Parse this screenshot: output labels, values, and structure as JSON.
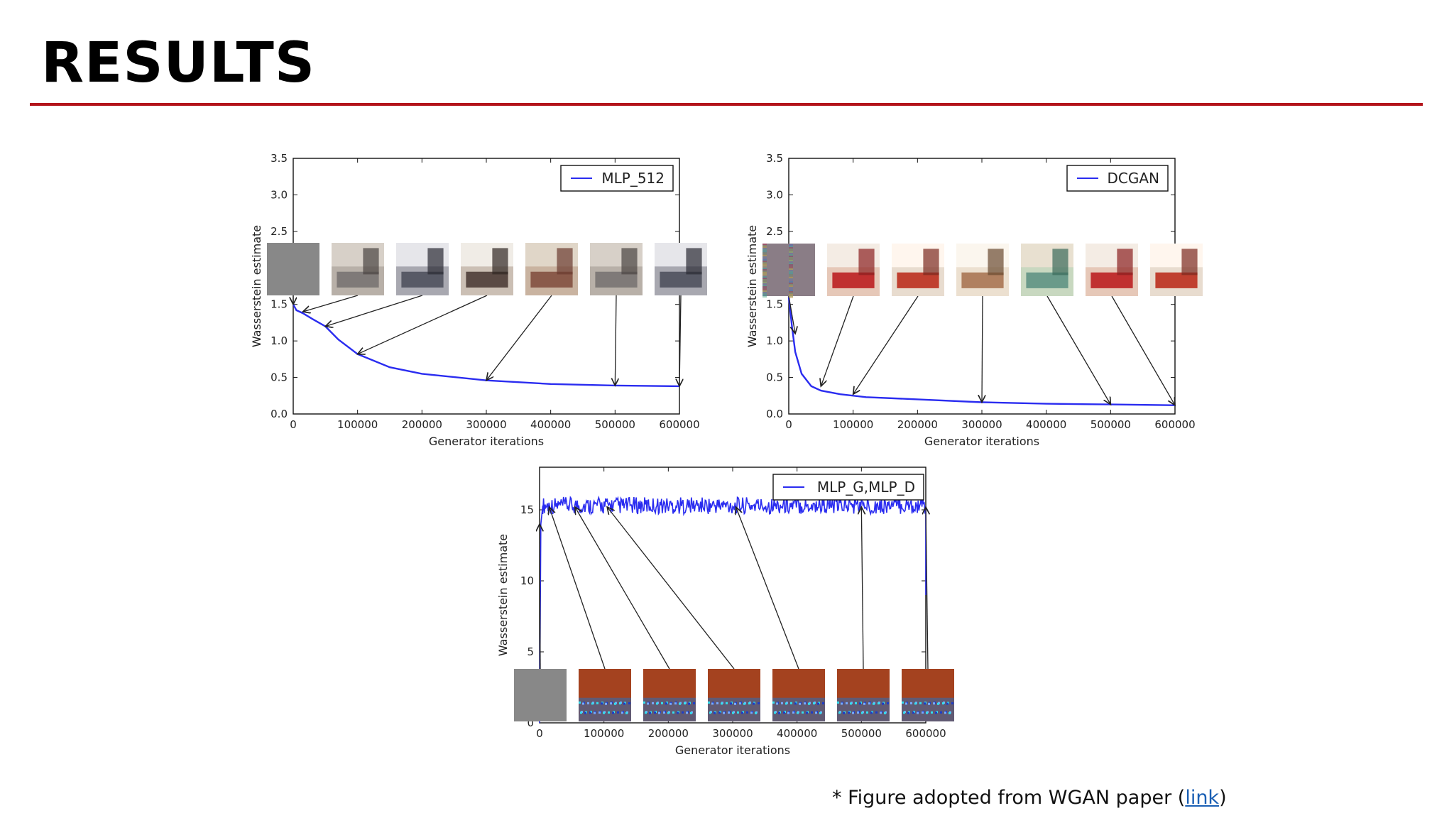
{
  "slide": {
    "title": "RESULTS",
    "footnote_prefix": "* Figure adopted from WGAN paper (",
    "footnote_link": "link",
    "footnote_suffix": ")",
    "rule_color": "#b3141b",
    "link_color": "#1a5fb4"
  },
  "chart_data": [
    {
      "type": "line",
      "legend": "MLP_512",
      "legend_position": "top-right",
      "xlabel": "Generator iterations",
      "ylabel": "Wasserstein estimate",
      "xlim": [
        0,
        600000
      ],
      "ylim": [
        0,
        3.5
      ],
      "xticks": [
        0,
        100000,
        200000,
        300000,
        400000,
        500000,
        600000
      ],
      "yticks": [
        0.0,
        0.5,
        1.0,
        1.5,
        2.0,
        2.5,
        3.0,
        3.5
      ],
      "ytick_labels": [
        "0.0",
        "0.5",
        "1.0",
        "1.5",
        "2.0",
        "2.5",
        "3.0",
        "3.5"
      ],
      "line_color": "#2a2cf0",
      "series": [
        {
          "x": [
            0,
            5000,
            15000,
            30000,
            50000,
            70000,
            100000,
            150000,
            200000,
            300000,
            400000,
            500000,
            600000
          ],
          "y": [
            1.5,
            1.42,
            1.38,
            1.3,
            1.2,
            1.02,
            0.82,
            0.64,
            0.55,
            0.46,
            0.41,
            0.39,
            0.38
          ]
        }
      ],
      "sample_images": [
        "gray noise",
        "bedroom sample",
        "bedroom sample",
        "bedroom sample",
        "bedroom sample",
        "bedroom sample",
        "bedroom sample"
      ],
      "arrow_targets": [
        {
          "x": 0,
          "y": 1.5
        },
        {
          "x": 15000,
          "y": 1.4
        },
        {
          "x": 50000,
          "y": 1.2
        },
        {
          "x": 100000,
          "y": 0.82
        },
        {
          "x": 300000,
          "y": 0.46
        },
        {
          "x": 500000,
          "y": 0.39
        },
        {
          "x": 600000,
          "y": 0.38
        }
      ]
    },
    {
      "type": "line",
      "legend": "DCGAN",
      "legend_position": "top-right",
      "xlabel": "Generator iterations",
      "ylabel": "Wasserstein estimate",
      "xlim": [
        0,
        600000
      ],
      "ylim": [
        0,
        3.5
      ],
      "xticks": [
        0,
        100000,
        200000,
        300000,
        400000,
        500000,
        600000
      ],
      "yticks": [
        0.0,
        0.5,
        1.0,
        1.5,
        2.0,
        2.5,
        3.0,
        3.5
      ],
      "ytick_labels": [
        "0.0",
        "0.5",
        "1.0",
        "1.5",
        "2.0",
        "2.5",
        "3.0",
        "3.5"
      ],
      "line_color": "#2a2cf0",
      "series": [
        {
          "x": [
            0,
            5000,
            10000,
            20000,
            35000,
            50000,
            80000,
            120000,
            200000,
            300000,
            400000,
            500000,
            600000
          ],
          "y": [
            1.6,
            1.2,
            0.85,
            0.55,
            0.38,
            0.32,
            0.27,
            0.23,
            0.2,
            0.16,
            0.14,
            0.13,
            0.12
          ]
        }
      ],
      "sample_images": [
        "color noise",
        "bedroom sample",
        "bedroom sample",
        "bedroom sample",
        "bedroom sample",
        "bedroom sample",
        "bedroom sample"
      ],
      "arrow_targets": [
        {
          "x": 10000,
          "y": 1.1
        },
        {
          "x": 50000,
          "y": 0.38
        },
        {
          "x": 100000,
          "y": 0.27
        },
        {
          "x": 300000,
          "y": 0.16
        },
        {
          "x": 500000,
          "y": 0.13
        },
        {
          "x": 600000,
          "y": 0.12
        }
      ]
    },
    {
      "type": "line",
      "legend": "MLP_G,MLP_D",
      "legend_position": "top-right",
      "xlabel": "Generator iterations",
      "ylabel": "Wasserstein estimate",
      "xlim": [
        0,
        600000
      ],
      "ylim": [
        0,
        18
      ],
      "xticks": [
        0,
        100000,
        200000,
        300000,
        400000,
        500000,
        600000
      ],
      "yticks": [
        0,
        5,
        10,
        15
      ],
      "ytick_labels": [
        "0",
        "5",
        "10",
        "15"
      ],
      "line_color": "#2a2cf0",
      "series": [
        {
          "x": [
            0,
            2000,
            5000,
            600000
          ],
          "y": [
            0,
            14,
            15.3,
            15.3
          ],
          "noise_band": [
            14.7,
            15.9
          ]
        }
      ],
      "sample_images": [
        "gray noise",
        "degenerate sample",
        "degenerate sample",
        "degenerate sample",
        "degenerate sample",
        "degenerate sample",
        "degenerate sample"
      ],
      "arrow_targets": [
        {
          "x": 0,
          "y": 14
        },
        {
          "x": 15000,
          "y": 15.2
        },
        {
          "x": 55000,
          "y": 15.2
        },
        {
          "x": 105000,
          "y": 15.2
        },
        {
          "x": 305000,
          "y": 15.2
        },
        {
          "x": 500000,
          "y": 15.2
        },
        {
          "x": 600000,
          "y": 15.2
        }
      ]
    }
  ]
}
